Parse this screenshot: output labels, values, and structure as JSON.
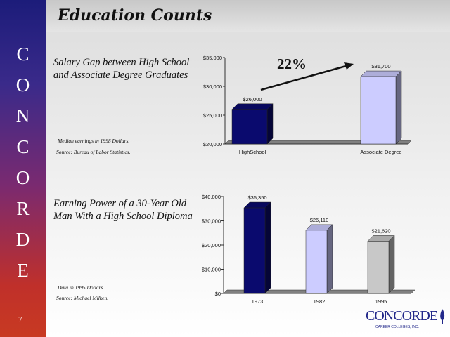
{
  "page_title": "Education Counts",
  "sidebar": {
    "letters": [
      "C",
      "O",
      "N",
      "C",
      "O",
      "R",
      "D",
      "E"
    ],
    "page_number": "7"
  },
  "section1": {
    "heading": "Salary Gap between High School and Associate Degree Graduates",
    "note1": "Median earnings in 1998 Dollars.",
    "note2": "Source: Bureau of Labor Statistics."
  },
  "section2": {
    "heading": "Earning Power of a 30-Year Old Man With a High School Diploma",
    "note1": "Data in 1995 Dollars.",
    "note2": "Source: Michael Milken."
  },
  "logo": {
    "name": "CONCORDE",
    "sub": "CAREER COLLEGES, INC."
  },
  "chart_data": [
    {
      "type": "bar",
      "categories": [
        "HighSchool",
        "Associate Degree"
      ],
      "values": [
        26000,
        31700
      ],
      "data_labels": [
        "$26,000",
        "$31,700"
      ],
      "colors": [
        "#0a0a6e",
        "#ccccff"
      ],
      "ylim": [
        20000,
        35000
      ],
      "yticks": [
        "$20,000",
        "$25,000",
        "$30,000",
        "$35,000"
      ],
      "annotation": "22%"
    },
    {
      "type": "bar",
      "categories": [
        "1973",
        "1982",
        "1995"
      ],
      "values": [
        35350,
        26110,
        21620
      ],
      "data_labels": [
        "$35,350",
        "$26,110",
        "$21,620"
      ],
      "colors": [
        "#0a0a6e",
        "#ccccff",
        "#c8c8c8"
      ],
      "ylim": [
        0,
        40000
      ],
      "yticks": [
        "$0",
        "$10,000",
        "$20,000",
        "$30,000",
        "$40,000"
      ]
    }
  ]
}
